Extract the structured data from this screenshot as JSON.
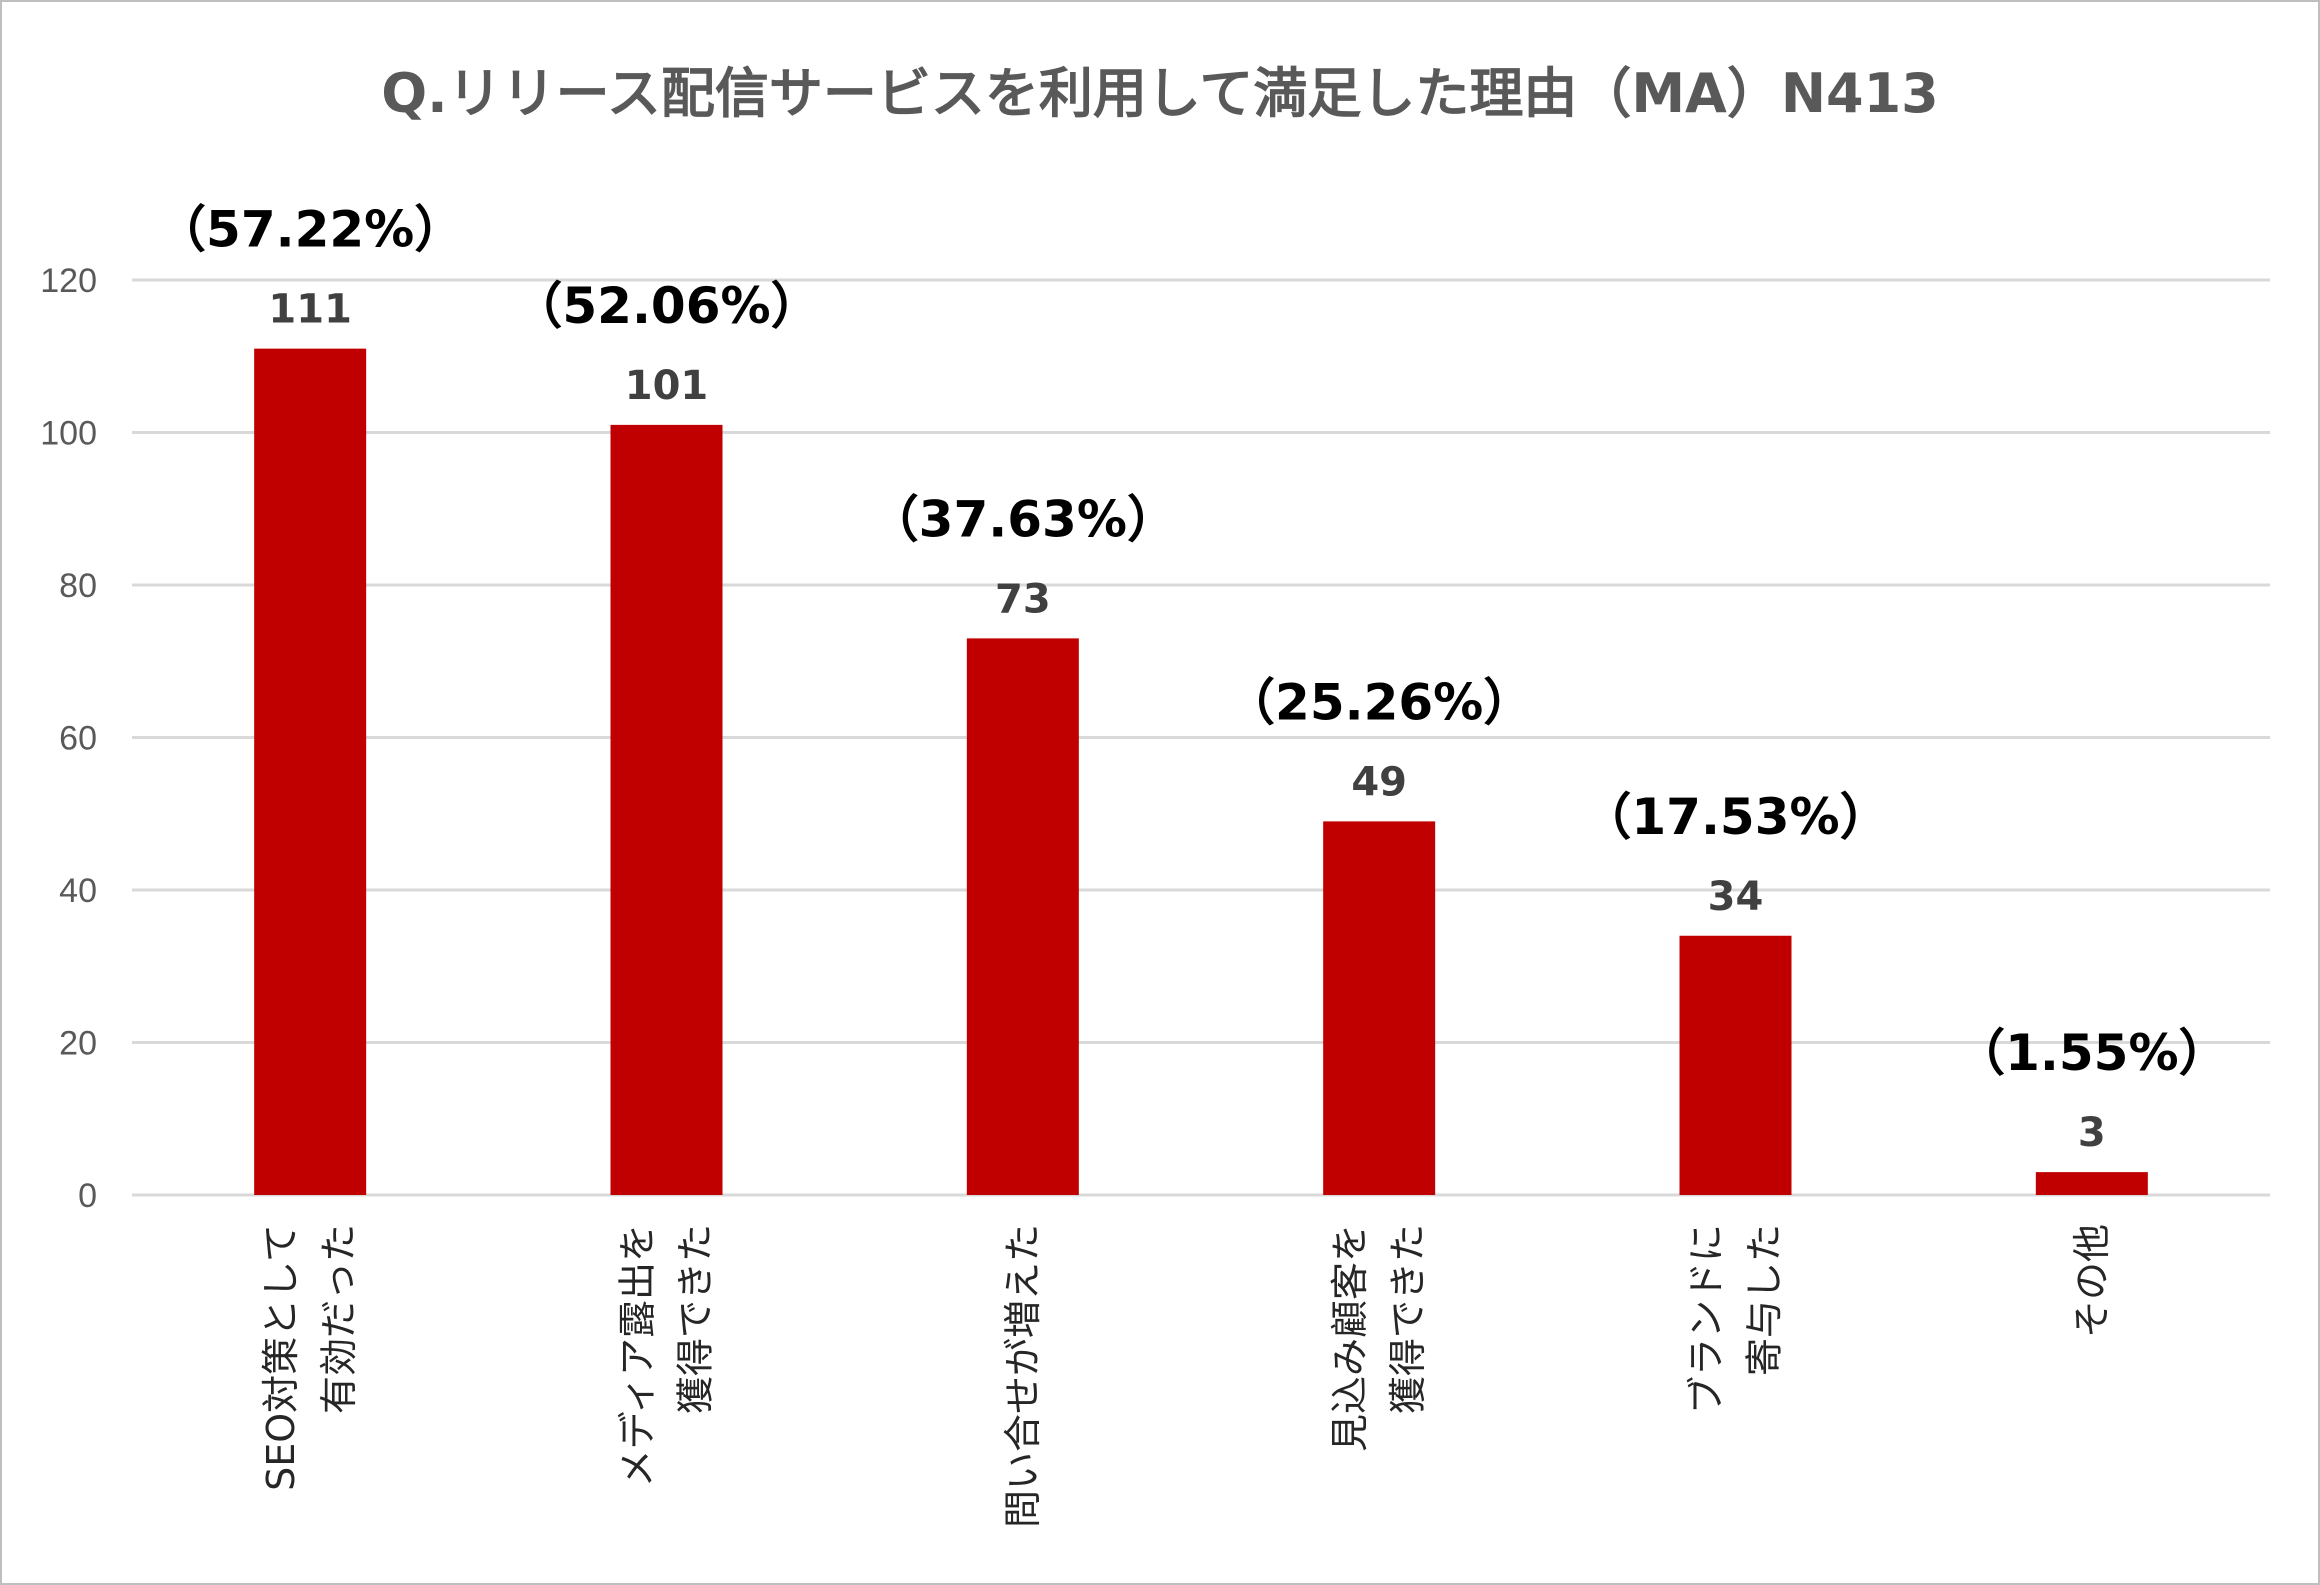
{
  "chart_data": {
    "type": "bar",
    "title": "Q.リリース配信サービスを利用して満足した理由（MA）N413",
    "categories": [
      [
        "SEO対策として",
        "有効だった"
      ],
      [
        "メディア露出を",
        "獲得できた"
      ],
      [
        "問い合せが増えた"
      ],
      [
        "見込み顧客を",
        "獲得できた"
      ],
      [
        "ブランドに",
        "寄与した"
      ],
      [
        "その他"
      ]
    ],
    "values": [
      111,
      101,
      73,
      49,
      34,
      3
    ],
    "percent_labels": [
      "（57.22%）",
      "（52.06%）",
      "（37.63%）",
      "（25.26%）",
      "（17.53%）",
      "（1.55%）"
    ],
    "ylim": [
      0,
      120
    ],
    "yticks": [
      0,
      20,
      40,
      60,
      80,
      100,
      120
    ],
    "grid": true,
    "bar_color": "#c00000"
  }
}
